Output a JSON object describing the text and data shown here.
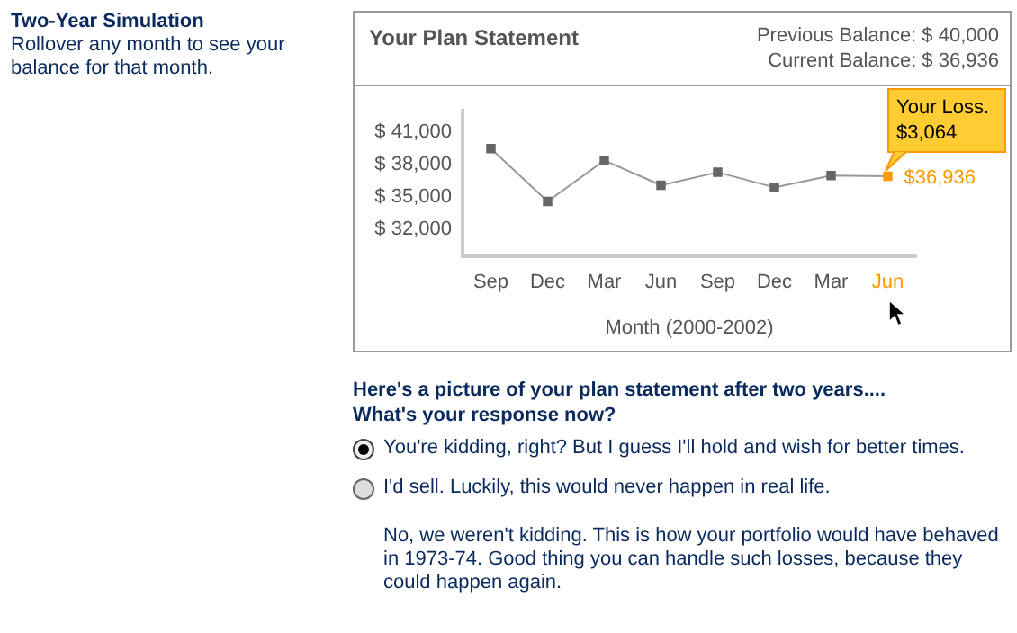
{
  "chart_data": {
    "type": "line",
    "title": "Your Plan Statement",
    "xlabel": "Month (2000-2002)",
    "categories": [
      "Sep",
      "Dec",
      "Mar",
      "Jun",
      "Sep",
      "Dec",
      "Mar",
      "Jun"
    ],
    "values": [
      39500,
      34600,
      38400,
      36100,
      37300,
      35900,
      37000,
      36936
    ],
    "color": "#999999",
    "colors": [
      "#666666",
      "#666666",
      "#666666",
      "#666666",
      "#666666",
      "#666666",
      "#666666",
      "#ff9900"
    ],
    "value_labels": [
      null,
      null,
      null,
      null,
      null,
      null,
      null,
      "$36,936"
    ],
    "ylim": [
      29500,
      43000
    ],
    "yticks": [
      {
        "value": 32000,
        "label": "$ 32,000"
      },
      {
        "value": 35000,
        "label": "$ 35,000"
      },
      {
        "value": 38000,
        "label": "$ 38,000"
      },
      {
        "value": 41000,
        "label": "$ 41,000"
      }
    ],
    "marker": "square",
    "grid": false,
    "legend": false,
    "annotations": [
      "Two-Year Simulation",
      "Rollover any month to see your balance for that month.",
      "Previous Balance: $ 40,000",
      "Current Balance: $ 36,936",
      "Your Loss. $3,064",
      "Here's a picture of your plan statement after two years.... What's your response now?",
      "You're kidding, right? But I guess I'll hold and wish for better times.",
      "I'd sell. Luckily, this would never happen in real life.",
      "No, we weren't kidding. This is how your portfolio would have behaved in 1973-74. Good thing you can handle such losses, because they could happen again."
    ]
  }
}
